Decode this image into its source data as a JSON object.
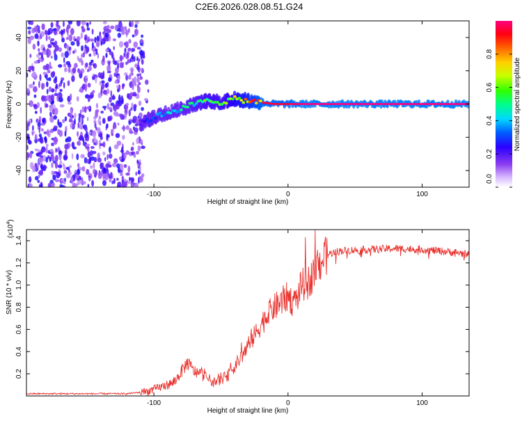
{
  "title": "C2E6.2026.028.08.51.G24",
  "colors": {
    "snr_line": "#e8302c",
    "ridge_low": "#3a00e0",
    "ridge_high": "#ff1500",
    "noise": "#8a3cf0"
  },
  "chart_data": [
    {
      "type": "heatmap",
      "name": "spectrogram",
      "xlabel": "Height of straight line (km)",
      "ylabel": "Frequency (Hz)",
      "xlim": [
        -195,
        135
      ],
      "ylim": [
        -50,
        50
      ],
      "xticks": [
        -100,
        0,
        100
      ],
      "yticks": [
        -40,
        -20,
        0,
        20,
        40
      ],
      "noise_region_x": [
        -195,
        -108
      ],
      "ridge": {
        "x": [
          -110,
          -100,
          -90,
          -80,
          -70,
          -60,
          -50,
          -40,
          -30,
          -20,
          -10,
          0,
          10,
          20,
          135
        ],
        "freq": [
          -12,
          -8,
          -5,
          -3,
          0,
          2,
          1,
          3,
          2,
          1,
          0,
          0,
          0,
          0,
          0
        ],
        "amplitude": [
          0.25,
          0.35,
          0.45,
          0.5,
          0.55,
          0.6,
          0.6,
          0.7,
          0.8,
          0.95,
          0.95,
          0.95,
          1.0,
          1.0,
          1.0
        ]
      },
      "colorbar": {
        "label": "Normalized spectral amplitude",
        "range": [
          0,
          1
        ],
        "ticks": [
          0.0,
          0.2,
          0.4,
          0.6,
          0.8
        ]
      }
    },
    {
      "type": "line",
      "name": "snr",
      "xlabel": "Height of straight line (km)",
      "ylabel": "SNR (10 * v/v)",
      "yscale_label": "(x10",
      "yscale_exponent": "4",
      "yscale_close": ")",
      "xlim": [
        -195,
        135
      ],
      "ylim": [
        0,
        1.5
      ],
      "xticks": [
        -100,
        0,
        100
      ],
      "yticks": [
        0.2,
        0.4,
        0.6,
        0.8,
        1.0,
        1.2,
        1.4
      ],
      "series": [
        {
          "name": "SNR",
          "x": [
            -195,
            -120,
            -105,
            -95,
            -85,
            -75,
            -70,
            -65,
            -55,
            -45,
            -35,
            -28,
            -20,
            -12,
            -5,
            0,
            5,
            10,
            15,
            20,
            25,
            30,
            40,
            60,
            80,
            100,
            120,
            135
          ],
          "values": [
            0.02,
            0.02,
            0.04,
            0.08,
            0.12,
            0.3,
            0.22,
            0.2,
            0.12,
            0.18,
            0.35,
            0.48,
            0.65,
            0.78,
            0.85,
            0.9,
            0.82,
            1.0,
            1.02,
            1.12,
            1.22,
            1.28,
            1.31,
            1.32,
            1.33,
            1.32,
            1.3,
            1.28
          ]
        }
      ]
    }
  ]
}
